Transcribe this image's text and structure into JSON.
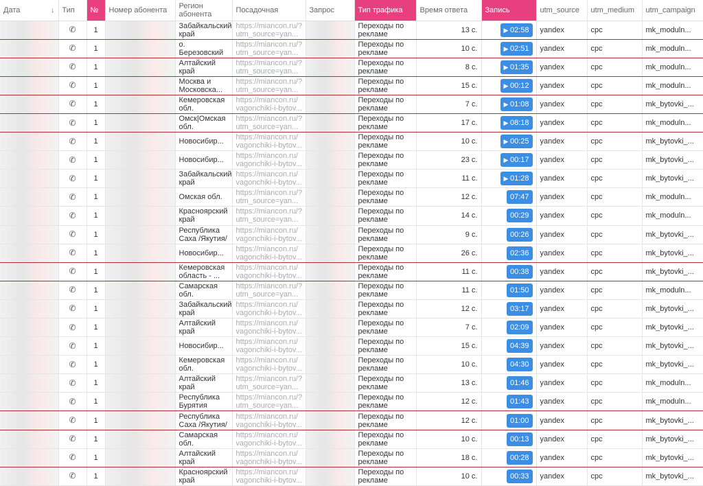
{
  "colors": {
    "accent": "#e8407f",
    "button": "#3b8ee3",
    "row_separator": "#b0303a"
  },
  "headers": {
    "date": "Дата",
    "sort_icon": "↓",
    "type": "Тип",
    "num": "№",
    "phone": "Номер абонента",
    "region": "Регион абонента",
    "landing": "Посадочная",
    "query": "Запрос",
    "traffic": "Тип трафика",
    "response": "Время ответа",
    "record": "Запись",
    "utm_source": "utm_source",
    "utm_medium": "utm_medium",
    "utm_campaign": "utm_campaign"
  },
  "common": {
    "num": "1",
    "traffic": "Переходы по рекламе",
    "utm_source": "yandex",
    "utm_medium": "cpc",
    "url_utm": "https://miancon.ru/?\nutm_source=yan...",
    "url_vag": "https://miancon.ru/\nvagonchiki-i-bytov...",
    "camp_m": "mk_moduln...",
    "camp_b": "mk_bytovki_...",
    "type_icon": "phone-icon"
  },
  "rows": [
    {
      "region": "Забайкальский край",
      "url": "utm",
      "resp": "13 с.",
      "rec": "02:58",
      "play": true,
      "camp": "m",
      "red": true
    },
    {
      "region": "о. Березовский",
      "url": "utm",
      "resp": "10 с.",
      "rec": "02:51",
      "play": true,
      "camp": "m",
      "red": true
    },
    {
      "region": "Алтайский край",
      "url": "utm",
      "resp": "8 с.",
      "rec": "01:35",
      "play": true,
      "camp": "m",
      "red": true
    },
    {
      "region": "Москва и Московска...",
      "url": "utm",
      "resp": "15 с.",
      "rec": "00:12",
      "play": true,
      "camp": "m",
      "red": true
    },
    {
      "region": "Кемеровская обл.",
      "url": "vag",
      "resp": "7 с.",
      "rec": "01:08",
      "play": true,
      "camp": "b",
      "red": true
    },
    {
      "region": "Омск|Омская обл.",
      "url": "utm",
      "resp": "17 с.",
      "rec": "08:18",
      "play": true,
      "camp": "m",
      "red": true
    },
    {
      "region": "Новосибир...",
      "url": "vag",
      "resp": "10 с.",
      "rec": "00:25",
      "play": true,
      "camp": "b",
      "red": false
    },
    {
      "region": "Новосибир...",
      "url": "vag",
      "resp": "23 с.",
      "rec": "00:17",
      "play": true,
      "camp": "b",
      "red": false
    },
    {
      "region": "Забайкальский край",
      "url": "vag",
      "resp": "11 с.",
      "rec": "01:28",
      "play": true,
      "camp": "b",
      "red": false
    },
    {
      "region": "Омская обл.",
      "url": "utm",
      "resp": "12 с.",
      "rec": "07:47",
      "play": false,
      "camp": "m",
      "red": false
    },
    {
      "region": "Красноярский край",
      "url": "utm",
      "resp": "14 с.",
      "rec": "00:29",
      "play": false,
      "camp": "m",
      "red": false
    },
    {
      "region": "Республика Саха /Якутия/",
      "url": "vag",
      "resp": "9 с.",
      "rec": "00:26",
      "play": false,
      "camp": "b",
      "red": false
    },
    {
      "region": "Новосибир...",
      "url": "vag",
      "resp": "26 с.",
      "rec": "02:36",
      "play": false,
      "camp": "b",
      "red": true
    },
    {
      "region": "Кемеровская область - ...",
      "url": "vag",
      "resp": "11 с.",
      "rec": "00:38",
      "play": false,
      "camp": "b",
      "red": true
    },
    {
      "region": "Самарская обл.",
      "url": "utm",
      "resp": "11 с.",
      "rec": "01:50",
      "play": false,
      "camp": "m",
      "red": false
    },
    {
      "region": "Забайкальский край",
      "url": "vag",
      "resp": "12 с.",
      "rec": "03:17",
      "play": false,
      "camp": "b",
      "red": false
    },
    {
      "region": "Алтайский край",
      "url": "vag",
      "resp": "7 с.",
      "rec": "02:09",
      "play": false,
      "camp": "b",
      "red": false
    },
    {
      "region": "Новосибир...",
      "url": "vag",
      "resp": "15 с.",
      "rec": "04:39",
      "play": false,
      "camp": "b",
      "red": false
    },
    {
      "region": "Кемеровская обл.",
      "url": "vag",
      "resp": "10 с.",
      "rec": "04:30",
      "play": false,
      "camp": "b",
      "red": false
    },
    {
      "region": "Алтайский край",
      "url": "utm",
      "resp": "13 с.",
      "rec": "01:46",
      "play": false,
      "camp": "m",
      "red": false
    },
    {
      "region": "Республика Бурятия",
      "url": "utm",
      "resp": "12 с.",
      "rec": "01:43",
      "play": false,
      "camp": "m",
      "red": true
    },
    {
      "region": "Республика Саха /Якутия/",
      "url": "vag",
      "resp": "12 с.",
      "rec": "01:00",
      "play": false,
      "camp": "b",
      "red": true
    },
    {
      "region": "Самарская обл.",
      "url": "vag",
      "resp": "10 с.",
      "rec": "00:13",
      "play": false,
      "camp": "b",
      "red": false
    },
    {
      "region": "Алтайский край",
      "url": "vag",
      "resp": "18 с.",
      "rec": "00:28",
      "play": false,
      "camp": "b",
      "red": true
    },
    {
      "region": "Красноярский край",
      "url": "vag",
      "resp": "10 с.",
      "rec": "00:33",
      "play": false,
      "camp": "b",
      "red": false
    }
  ]
}
